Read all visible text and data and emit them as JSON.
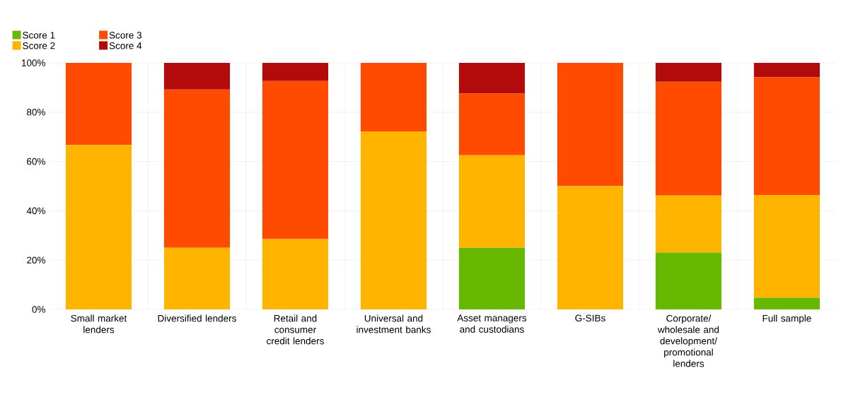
{
  "chart_data": {
    "type": "bar",
    "stacked": true,
    "categories": [
      "Small market lenders",
      "Diversified lenders",
      "Retail and consumer credit lenders",
      "Universal and investment banks",
      "Asset managers and custodians",
      "G-SIBs",
      "Corporate/ wholesale and development/ promotional lenders",
      "Full sample"
    ],
    "series": [
      {
        "name": "Score 1",
        "color": "#66b800",
        "values": [
          0,
          0,
          0,
          0,
          25,
          0,
          23.1,
          4.7
        ]
      },
      {
        "name": "Score 2",
        "color": "#ffb400",
        "values": [
          66.7,
          25,
          28.5,
          72.2,
          37.5,
          50,
          23.1,
          41.7
        ]
      },
      {
        "name": "Score 3",
        "color": "#ff4b00",
        "values": [
          33.3,
          64.2,
          64.1,
          27.8,
          25,
          50,
          46.1,
          47.7
        ]
      },
      {
        "name": "Score 4",
        "color": "#b30b0b",
        "values": [
          0,
          10.8,
          7.4,
          0,
          12.5,
          0,
          7.7,
          5.9
        ]
      }
    ],
    "ylim": [
      0,
      100
    ],
    "yticks": [
      {
        "value": 0,
        "label": "0%"
      },
      {
        "value": 20,
        "label": "20%"
      },
      {
        "value": 40,
        "label": "40%"
      },
      {
        "value": 60,
        "label": "60%"
      },
      {
        "value": 80,
        "label": "80%"
      },
      {
        "value": 100,
        "label": "100%"
      }
    ],
    "grid": true,
    "legend": "top left"
  }
}
